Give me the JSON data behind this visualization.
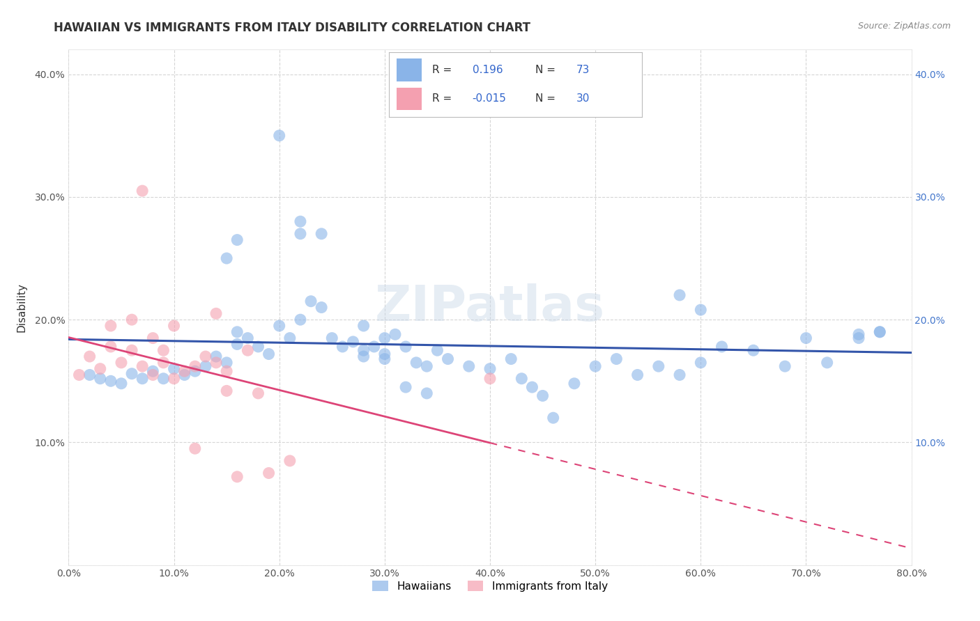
{
  "title": "HAWAIIAN VS IMMIGRANTS FROM ITALY DISABILITY CORRELATION CHART",
  "source_text": "Source: ZipAtlas.com",
  "ylabel": "Disability",
  "legend_labels": [
    "Hawaiians",
    "Immigrants from Italy"
  ],
  "xlim": [
    0.0,
    0.8
  ],
  "ylim": [
    0.0,
    0.42
  ],
  "xticks": [
    0.0,
    0.1,
    0.2,
    0.3,
    0.4,
    0.5,
    0.6,
    0.7,
    0.8
  ],
  "yticks": [
    0.0,
    0.1,
    0.2,
    0.3,
    0.4
  ],
  "ytick_labels_left": [
    "",
    "10.0%",
    "20.0%",
    "30.0%",
    "40.0%"
  ],
  "ytick_labels_right": [
    "",
    "10.0%",
    "20.0%",
    "30.0%",
    "40.0%"
  ],
  "xtick_labels": [
    "0.0%",
    "10.0%",
    "20.0%",
    "30.0%",
    "40.0%",
    "50.0%",
    "60.0%",
    "70.0%",
    "80.0%"
  ],
  "blue_color": "#8ab4e8",
  "pink_color": "#f4a0b0",
  "blue_line_color": "#3355aa",
  "pink_line_color": "#dd4477",
  "background_color": "#ffffff",
  "grid_color": "#cccccc",
  "watermark_text": "ZIPatlas",
  "hawaiians_x": [
    0.02,
    0.03,
    0.04,
    0.05,
    0.06,
    0.07,
    0.08,
    0.09,
    0.1,
    0.11,
    0.12,
    0.13,
    0.14,
    0.15,
    0.16,
    0.16,
    0.17,
    0.18,
    0.19,
    0.2,
    0.21,
    0.22,
    0.23,
    0.24,
    0.25,
    0.26,
    0.27,
    0.28,
    0.29,
    0.3,
    0.31,
    0.32,
    0.33,
    0.34,
    0.35,
    0.36,
    0.38,
    0.4,
    0.42,
    0.43,
    0.44,
    0.45,
    0.46,
    0.48,
    0.5,
    0.52,
    0.54,
    0.56,
    0.58,
    0.6,
    0.62,
    0.65,
    0.68,
    0.7,
    0.72,
    0.75,
    0.77,
    0.28,
    0.3,
    0.32,
    0.34,
    0.15,
    0.16,
    0.22,
    0.24,
    0.28,
    0.3,
    0.58,
    0.6,
    0.75,
    0.77,
    0.2,
    0.22
  ],
  "hawaiians_y": [
    0.155,
    0.152,
    0.15,
    0.148,
    0.156,
    0.152,
    0.158,
    0.152,
    0.16,
    0.155,
    0.158,
    0.162,
    0.17,
    0.165,
    0.18,
    0.19,
    0.185,
    0.178,
    0.172,
    0.195,
    0.185,
    0.2,
    0.215,
    0.21,
    0.185,
    0.178,
    0.182,
    0.175,
    0.178,
    0.172,
    0.188,
    0.178,
    0.165,
    0.162,
    0.175,
    0.168,
    0.162,
    0.16,
    0.168,
    0.152,
    0.145,
    0.138,
    0.12,
    0.148,
    0.162,
    0.168,
    0.155,
    0.162,
    0.155,
    0.165,
    0.178,
    0.175,
    0.162,
    0.185,
    0.165,
    0.188,
    0.19,
    0.17,
    0.168,
    0.145,
    0.14,
    0.25,
    0.265,
    0.28,
    0.27,
    0.195,
    0.185,
    0.22,
    0.208,
    0.185,
    0.19,
    0.35,
    0.27
  ],
  "italy_x": [
    0.01,
    0.02,
    0.03,
    0.04,
    0.04,
    0.05,
    0.06,
    0.06,
    0.07,
    0.07,
    0.08,
    0.08,
    0.09,
    0.09,
    0.1,
    0.1,
    0.11,
    0.12,
    0.12,
    0.13,
    0.14,
    0.14,
    0.15,
    0.15,
    0.16,
    0.17,
    0.18,
    0.19,
    0.21,
    0.4
  ],
  "italy_y": [
    0.155,
    0.17,
    0.16,
    0.178,
    0.195,
    0.165,
    0.175,
    0.2,
    0.162,
    0.305,
    0.155,
    0.185,
    0.165,
    0.175,
    0.152,
    0.195,
    0.158,
    0.162,
    0.095,
    0.17,
    0.165,
    0.205,
    0.158,
    0.142,
    0.072,
    0.175,
    0.14,
    0.075,
    0.085,
    0.152
  ],
  "title_fontsize": 12,
  "axis_label_fontsize": 11,
  "tick_fontsize": 10,
  "legend_fontsize": 11
}
